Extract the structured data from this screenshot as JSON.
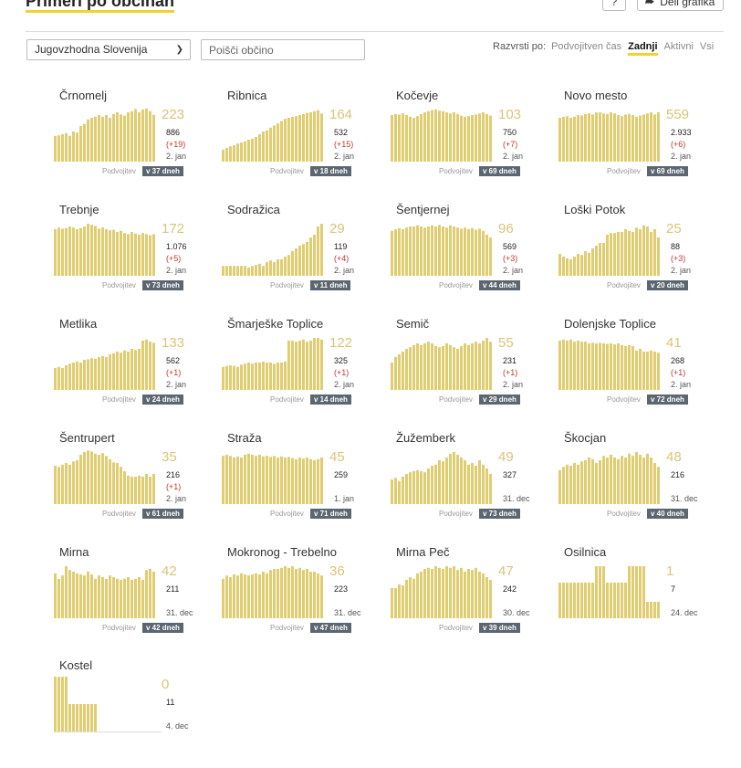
{
  "header": {
    "title": "Primeri po občinah",
    "help_label": "?",
    "share_label": "Deli grafika",
    "share_icon": "share-arrow-icon"
  },
  "filters": {
    "region_selected": "Jugovzhodna Slovenija",
    "search_placeholder": "Poišči občino",
    "sort_label": "Razvrsti po:",
    "sort_options": [
      "Podvojitven čas",
      "Zadnji",
      "Aktivni",
      "Vsi"
    ],
    "sort_active": "Zadnji"
  },
  "colors": {
    "bar": "#e0cd72",
    "accent": "#f3d230",
    "delta": "#c0392b",
    "badge": "#5c6670"
  },
  "doubling_label": "Podvojitev",
  "municipalities": [
    {
      "name": "Črnomelj",
      "recent": "223",
      "total": "886",
      "delta": "(+19)",
      "date": "2. jan",
      "doubling": "v 37 dneh",
      "bars": [
        0.47,
        0.48,
        0.5,
        0.52,
        0.47,
        0.55,
        0.53,
        0.65,
        0.69,
        0.77,
        0.8,
        0.82,
        0.85,
        0.82,
        0.85,
        0.8,
        0.87,
        0.9,
        0.86,
        0.84,
        0.9,
        0.92,
        0.96,
        0.9,
        0.95,
        0.97,
        0.92,
        0.85
      ]
    },
    {
      "name": "Ribnica",
      "recent": "164",
      "total": "532",
      "delta": "(+15)",
      "date": "2. jan",
      "doubling": "v 18 dneh",
      "bars": [
        0.22,
        0.25,
        0.28,
        0.3,
        0.33,
        0.35,
        0.37,
        0.4,
        0.42,
        0.45,
        0.5,
        0.55,
        0.57,
        0.62,
        0.66,
        0.7,
        0.74,
        0.78,
        0.8,
        0.82,
        0.83,
        0.85,
        0.87,
        0.89,
        0.9,
        0.92,
        0.94,
        0.88
      ]
    },
    {
      "name": "Kočevje",
      "recent": "103",
      "total": "750",
      "delta": "(+7)",
      "date": "2. jan",
      "doubling": "v 69 dneh",
      "bars": [
        0.85,
        0.87,
        0.86,
        0.88,
        0.85,
        0.82,
        0.8,
        0.83,
        0.87,
        0.9,
        0.92,
        0.94,
        0.95,
        0.93,
        0.92,
        0.9,
        0.88,
        0.9,
        0.87,
        0.84,
        0.82,
        0.83,
        0.85,
        0.86,
        0.88,
        0.9,
        0.87,
        0.84
      ]
    },
    {
      "name": "Novo mesto",
      "recent": "559",
      "total": "2.933",
      "delta": "(+6)",
      "date": "2. jan",
      "doubling": "v 69 dneh",
      "bars": [
        0.8,
        0.82,
        0.83,
        0.8,
        0.82,
        0.85,
        0.84,
        0.87,
        0.88,
        0.86,
        0.9,
        0.9,
        0.88,
        0.87,
        0.9,
        0.88,
        0.85,
        0.83,
        0.86,
        0.87,
        0.85,
        0.82,
        0.84,
        0.86,
        0.88,
        0.9,
        0.86,
        0.9
      ]
    },
    {
      "name": "Trebnje",
      "recent": "172",
      "total": "1.076",
      "delta": "(+5)",
      "date": "2. jan",
      "doubling": "v 73 dneh",
      "bars": [
        0.85,
        0.88,
        0.86,
        0.87,
        0.9,
        0.88,
        0.85,
        0.87,
        0.9,
        0.95,
        0.93,
        0.91,
        0.86,
        0.88,
        0.85,
        0.83,
        0.84,
        0.8,
        0.82,
        0.78,
        0.76,
        0.8,
        0.77,
        0.75,
        0.78,
        0.76,
        0.74,
        0.76
      ]
    },
    {
      "name": "Sodražica",
      "recent": "29",
      "total": "119",
      "delta": "(+4)",
      "date": "2. jan",
      "doubling": "v 11 dneh",
      "bars": [
        0.18,
        0.18,
        0.18,
        0.18,
        0.18,
        0.18,
        0.18,
        0.15,
        0.18,
        0.2,
        0.22,
        0.18,
        0.25,
        0.28,
        0.25,
        0.3,
        0.3,
        0.35,
        0.38,
        0.45,
        0.5,
        0.55,
        0.58,
        0.62,
        0.7,
        0.75,
        0.9,
        0.95
      ]
    },
    {
      "name": "Šentjernej",
      "recent": "96",
      "total": "569",
      "delta": "(+3)",
      "date": "2. jan",
      "doubling": "v 44 dneh",
      "bars": [
        0.82,
        0.85,
        0.87,
        0.85,
        0.88,
        0.9,
        0.9,
        0.92,
        0.9,
        0.88,
        0.9,
        0.92,
        0.9,
        0.93,
        0.9,
        0.88,
        0.92,
        0.9,
        0.88,
        0.86,
        0.88,
        0.85,
        0.87,
        0.84,
        0.86,
        0.82,
        0.75,
        0.7
      ]
    },
    {
      "name": "Loški Potok",
      "recent": "25",
      "total": "88",
      "delta": "(+3)",
      "date": "2. jan",
      "doubling": "v 20 dneh",
      "bars": [
        0.4,
        0.35,
        0.32,
        0.3,
        0.35,
        0.4,
        0.38,
        0.45,
        0.42,
        0.5,
        0.55,
        0.6,
        0.6,
        0.75,
        0.78,
        0.78,
        0.8,
        0.8,
        0.85,
        0.82,
        0.8,
        0.88,
        0.85,
        0.92,
        0.9,
        0.8,
        0.85,
        0.7
      ]
    },
    {
      "name": "Metlika",
      "recent": "133",
      "total": "562",
      "delta": "(+1)",
      "date": "2. jan",
      "doubling": "v 24 dneh",
      "bars": [
        0.4,
        0.42,
        0.4,
        0.45,
        0.48,
        0.5,
        0.52,
        0.5,
        0.55,
        0.56,
        0.58,
        0.57,
        0.6,
        0.62,
        0.6,
        0.65,
        0.67,
        0.7,
        0.68,
        0.72,
        0.7,
        0.75,
        0.73,
        0.75,
        0.9,
        0.92,
        0.88,
        0.86
      ]
    },
    {
      "name": "Šmarješke Toplice",
      "recent": "122",
      "total": "325",
      "delta": "(+1)",
      "date": "2. jan",
      "doubling": "v 14 dneh",
      "bars": [
        0.42,
        0.44,
        0.45,
        0.44,
        0.42,
        0.46,
        0.48,
        0.5,
        0.48,
        0.5,
        0.5,
        0.52,
        0.5,
        0.5,
        0.48,
        0.5,
        0.5,
        0.52,
        0.9,
        0.9,
        0.88,
        0.9,
        0.92,
        0.88,
        0.9,
        0.95,
        0.95,
        0.92
      ]
    },
    {
      "name": "Semič",
      "recent": "55",
      "total": "231",
      "delta": "(+1)",
      "date": "2. jan",
      "doubling": "v 29 dneh",
      "bars": [
        0.5,
        0.6,
        0.65,
        0.7,
        0.75,
        0.78,
        0.82,
        0.85,
        0.82,
        0.85,
        0.88,
        0.85,
        0.8,
        0.78,
        0.8,
        0.85,
        0.82,
        0.78,
        0.75,
        0.8,
        0.85,
        0.82,
        0.85,
        0.88,
        0.85,
        0.9,
        0.95,
        0.88
      ]
    },
    {
      "name": "Dolenjske Toplice",
      "recent": "41",
      "total": "268",
      "delta": "(+1)",
      "date": "2. jan",
      "doubling": "v 72 dneh",
      "bars": [
        0.9,
        0.92,
        0.9,
        0.92,
        0.88,
        0.9,
        0.88,
        0.88,
        0.85,
        0.86,
        0.85,
        0.86,
        0.85,
        0.84,
        0.85,
        0.83,
        0.85,
        0.82,
        0.8,
        0.82,
        0.8,
        0.72,
        0.75,
        0.7,
        0.7,
        0.72,
        0.7,
        0.68
      ]
    },
    {
      "name": "Šentrupert",
      "recent": "35",
      "total": "216",
      "delta": "(+1)",
      "date": "2. jan",
      "doubling": "v 61 dneh",
      "bars": [
        0.7,
        0.68,
        0.72,
        0.75,
        0.72,
        0.78,
        0.8,
        0.9,
        0.95,
        0.98,
        0.96,
        0.92,
        0.9,
        0.93,
        0.88,
        0.82,
        0.76,
        0.75,
        0.68,
        0.6,
        0.52,
        0.5,
        0.5,
        0.52,
        0.5,
        0.55,
        0.5,
        0.55
      ]
    },
    {
      "name": "Straža",
      "recent": "45",
      "total": "259",
      "delta": "",
      "date": "1. jan",
      "doubling": "v 71 dneh",
      "bars": [
        0.88,
        0.9,
        0.88,
        0.85,
        0.87,
        0.85,
        0.9,
        0.92,
        0.9,
        0.88,
        0.9,
        0.87,
        0.88,
        0.86,
        0.88,
        0.85,
        0.87,
        0.85,
        0.86,
        0.84,
        0.82,
        0.85,
        0.83,
        0.85,
        0.82,
        0.8,
        0.82,
        0.85
      ]
    },
    {
      "name": "Žužemberk",
      "recent": "49",
      "total": "327",
      "delta": "",
      "date": "31. dec",
      "doubling": "v 73 dneh",
      "bars": [
        0.45,
        0.48,
        0.42,
        0.5,
        0.55,
        0.58,
        0.6,
        0.62,
        0.6,
        0.58,
        0.65,
        0.7,
        0.72,
        0.8,
        0.78,
        0.85,
        0.92,
        0.95,
        0.9,
        0.85,
        0.8,
        0.72,
        0.75,
        0.7,
        0.8,
        0.72,
        0.65,
        0.55
      ]
    },
    {
      "name": "Škocjan",
      "recent": "48",
      "total": "216",
      "delta": "",
      "date": "31. dec",
      "doubling": "v 40 dneh",
      "bars": [
        0.62,
        0.68,
        0.72,
        0.7,
        0.75,
        0.72,
        0.78,
        0.8,
        0.85,
        0.82,
        0.75,
        0.8,
        0.88,
        0.85,
        0.9,
        0.85,
        0.82,
        0.88,
        0.85,
        0.92,
        0.88,
        0.95,
        0.9,
        0.85,
        0.92,
        0.85,
        0.75,
        0.68
      ]
    },
    {
      "name": "Mirna",
      "recent": "42",
      "total": "211",
      "delta": "",
      "date": "31. dec",
      "doubling": "v 42 dneh",
      "bars": [
        0.82,
        0.72,
        0.78,
        0.95,
        0.88,
        0.85,
        0.82,
        0.8,
        0.78,
        0.85,
        0.8,
        0.72,
        0.78,
        0.75,
        0.72,
        0.78,
        0.75,
        0.72,
        0.7,
        0.72,
        0.75,
        0.7,
        0.72,
        0.75,
        0.7,
        0.88,
        0.9,
        0.85
      ]
    },
    {
      "name": "Mokronog - Trebelno",
      "recent": "36",
      "total": "223",
      "delta": "",
      "date": "31. dec",
      "doubling": "v 47 dneh",
      "bars": [
        0.72,
        0.78,
        0.75,
        0.8,
        0.78,
        0.82,
        0.8,
        0.78,
        0.8,
        0.82,
        0.8,
        0.85,
        0.82,
        0.88,
        0.9,
        0.9,
        0.92,
        0.95,
        0.92,
        0.95,
        0.9,
        0.92,
        0.88,
        0.9,
        0.85,
        0.85,
        0.82,
        0.78
      ]
    },
    {
      "name": "Mirna Peč",
      "recent": "47",
      "total": "242",
      "delta": "",
      "date": "30. dec",
      "doubling": "v 39 dneh",
      "bars": [
        0.55,
        0.55,
        0.62,
        0.6,
        0.7,
        0.75,
        0.72,
        0.82,
        0.85,
        0.9,
        0.92,
        0.9,
        0.95,
        0.92,
        0.9,
        0.95,
        0.92,
        0.95,
        0.88,
        0.92,
        0.85,
        0.9,
        0.88,
        0.92,
        0.85,
        0.82,
        0.75,
        0.7
      ]
    },
    {
      "name": "Osilnica",
      "recent": "1",
      "total": "7",
      "delta": "",
      "date": "24. dec",
      "doubling": "",
      "bars": [
        0.65,
        0.65,
        0.65,
        0.65,
        0.65,
        0.65,
        0.65,
        0.65,
        0.65,
        0.65,
        0.95,
        0.95,
        0.95,
        0.65,
        0.65,
        0.65,
        0.65,
        0.65,
        0.65,
        0.95,
        0.95,
        0.95,
        0.95,
        0.95,
        0.3,
        0.3,
        0.3,
        0.3
      ]
    },
    {
      "name": "Kostel",
      "recent": "0",
      "total": "11",
      "delta": "",
      "date": "4. dec",
      "doubling": "",
      "bars": [
        1,
        1,
        1,
        1,
        0.5,
        0.5,
        0.5,
        0.5,
        0.5,
        0.5,
        0.5,
        0.5
      ]
    }
  ]
}
